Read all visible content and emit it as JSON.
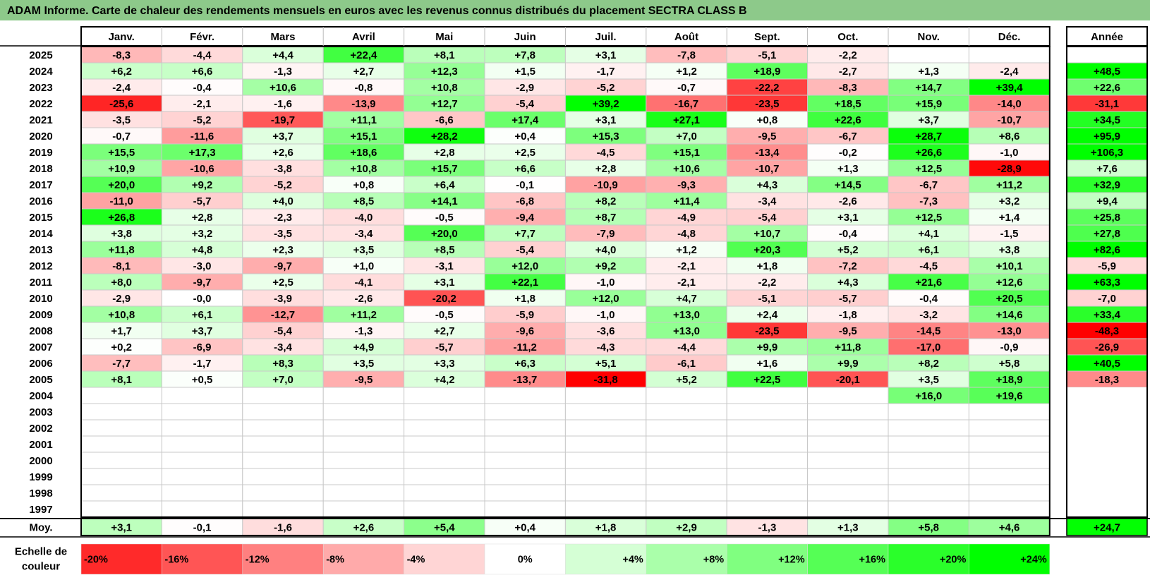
{
  "title": "ADAM Informe. Carte de chaleur des rendements mensuels en euros avec les revenus connus distribués du placement SECTRA CLASS B",
  "chart_data": {
    "type": "heatmap",
    "title": "ADAM Informe. Carte de chaleur des rendements mensuels en euros avec les revenus connus distribués du placement SECTRA CLASS B",
    "columns": [
      "Janv.",
      "Févr.",
      "Mars",
      "Avril",
      "Mai",
      "Juin",
      "Juil.",
      "Août",
      "Sept.",
      "Oct.",
      "Nov.",
      "Déc."
    ],
    "annual_header": "Année",
    "rows": [
      {
        "year": "2025",
        "values": [
          "-8,3",
          "-4,4",
          "+4,4",
          "+22,4",
          "+8,1",
          "+7,8",
          "+3,1",
          "-7,8",
          "-5,1",
          "-2,2",
          "",
          ""
        ],
        "annual": ""
      },
      {
        "year": "2024",
        "values": [
          "+6,2",
          "+6,6",
          "-1,3",
          "+2,7",
          "+12,3",
          "+1,5",
          "-1,7",
          "+1,2",
          "+18,9",
          "-2,7",
          "+1,3",
          "-2,4"
        ],
        "annual": "+48,5"
      },
      {
        "year": "2023",
        "values": [
          "-2,4",
          "-0,4",
          "+10,6",
          "-0,8",
          "+10,8",
          "-2,9",
          "-5,2",
          "-0,7",
          "-22,2",
          "-8,3",
          "+14,7",
          "+39,4"
        ],
        "annual": "+22,6"
      },
      {
        "year": "2022",
        "values": [
          "-25,6",
          "-2,1",
          "-1,6",
          "-13,9",
          "+12,7",
          "-5,4",
          "+39,2",
          "-16,7",
          "-23,5",
          "+18,5",
          "+15,9",
          "-14,0"
        ],
        "annual": "-31,1"
      },
      {
        "year": "2021",
        "values": [
          "-3,5",
          "-5,2",
          "-19,7",
          "+11,1",
          "-6,6",
          "+17,4",
          "+3,1",
          "+27,1",
          "+0,8",
          "+22,6",
          "+3,7",
          "-10,7"
        ],
        "annual": "+34,5"
      },
      {
        "year": "2020",
        "values": [
          "-0,7",
          "-11,6",
          "+3,7",
          "+15,1",
          "+28,2",
          "+0,4",
          "+15,3",
          "+7,0",
          "-9,5",
          "-6,7",
          "+28,7",
          "+8,6"
        ],
        "annual": "+95,9"
      },
      {
        "year": "2019",
        "values": [
          "+15,5",
          "+17,3",
          "+2,6",
          "+18,6",
          "+2,8",
          "+2,5",
          "-4,5",
          "+15,1",
          "-13,4",
          "-0,2",
          "+26,6",
          "-1,0"
        ],
        "annual": "+106,3"
      },
      {
        "year": "2018",
        "values": [
          "+10,9",
          "-10,6",
          "-3,8",
          "+10,8",
          "+15,7",
          "+6,6",
          "+2,8",
          "+10,6",
          "-10,7",
          "+1,3",
          "+12,5",
          "-28,9"
        ],
        "annual": "+7,6"
      },
      {
        "year": "2017",
        "values": [
          "+20,0",
          "+9,2",
          "-5,2",
          "+0,8",
          "+6,4",
          "-0,1",
          "-10,9",
          "-9,3",
          "+4,3",
          "+14,5",
          "-6,7",
          "+11,2"
        ],
        "annual": "+32,9"
      },
      {
        "year": "2016",
        "values": [
          "-11,0",
          "-5,7",
          "+4,0",
          "+8,5",
          "+14,1",
          "-6,8",
          "+8,2",
          "+11,4",
          "-3,4",
          "-2,6",
          "-7,3",
          "+3,2"
        ],
        "annual": "+9,4"
      },
      {
        "year": "2015",
        "values": [
          "+26,8",
          "+2,8",
          "-2,3",
          "-4,0",
          "-0,5",
          "-9,4",
          "+8,7",
          "-4,9",
          "-5,4",
          "+3,1",
          "+12,5",
          "+1,4"
        ],
        "annual": "+25,8"
      },
      {
        "year": "2014",
        "values": [
          "+3,8",
          "+3,2",
          "-3,5",
          "-3,4",
          "+20,0",
          "+7,7",
          "-7,9",
          "-4,8",
          "+10,7",
          "-0,4",
          "+4,1",
          "-1,5"
        ],
        "annual": "+27,8"
      },
      {
        "year": "2013",
        "values": [
          "+11,8",
          "+4,8",
          "+2,3",
          "+3,5",
          "+8,5",
          "-5,4",
          "+4,0",
          "+1,2",
          "+20,3",
          "+5,2",
          "+6,1",
          "+3,8"
        ],
        "annual": "+82,6"
      },
      {
        "year": "2012",
        "values": [
          "-8,1",
          "-3,0",
          "-9,7",
          "+1,0",
          "-3,1",
          "+12,0",
          "+9,2",
          "-2,1",
          "+1,8",
          "-7,2",
          "-4,5",
          "+10,1"
        ],
        "annual": "-5,9"
      },
      {
        "year": "2011",
        "values": [
          "+8,0",
          "-9,7",
          "+2,5",
          "-4,1",
          "+3,1",
          "+22,1",
          "-1,0",
          "-2,1",
          "-2,2",
          "+4,3",
          "+21,6",
          "+12,6"
        ],
        "annual": "+63,3"
      },
      {
        "year": "2010",
        "values": [
          "-2,9",
          "-0,0",
          "-3,9",
          "-2,6",
          "-20,2",
          "+1,8",
          "+12,0",
          "+4,7",
          "-5,1",
          "-5,7",
          "-0,4",
          "+20,5"
        ],
        "annual": "-7,0"
      },
      {
        "year": "2009",
        "values": [
          "+10,8",
          "+6,1",
          "-12,7",
          "+11,2",
          "-0,5",
          "-5,9",
          "-1,0",
          "+13,0",
          "+2,4",
          "-1,8",
          "-3,2",
          "+14,6"
        ],
        "annual": "+33,4"
      },
      {
        "year": "2008",
        "values": [
          "+1,7",
          "+3,7",
          "-5,4",
          "-1,3",
          "+2,7",
          "-9,6",
          "-3,6",
          "+13,0",
          "-23,5",
          "-9,5",
          "-14,5",
          "-13,0"
        ],
        "annual": "-48,3"
      },
      {
        "year": "2007",
        "values": [
          "+0,2",
          "-6,9",
          "-3,4",
          "+4,9",
          "-5,7",
          "-11,2",
          "-4,3",
          "-4,4",
          "+9,9",
          "+11,8",
          "-17,0",
          "-0,9"
        ],
        "annual": "-26,9"
      },
      {
        "year": "2006",
        "values": [
          "-7,7",
          "-1,7",
          "+8,3",
          "+3,5",
          "+3,3",
          "+6,3",
          "+5,1",
          "-6,1",
          "+1,6",
          "+9,9",
          "+8,2",
          "+5,8"
        ],
        "annual": "+40,5"
      },
      {
        "year": "2005",
        "values": [
          "+8,1",
          "+0,5",
          "+7,0",
          "-9,5",
          "+4,2",
          "-13,7",
          "-31,8",
          "+5,2",
          "+22,5",
          "-20,1",
          "+3,5",
          "+18,9"
        ],
        "annual": "-18,3"
      },
      {
        "year": "2004",
        "values": [
          "",
          "",
          "",
          "",
          "",
          "",
          "",
          "",
          "",
          "",
          "+16,0",
          "+19,6"
        ],
        "annual": ""
      },
      {
        "year": "2003",
        "values": [
          "",
          "",
          "",
          "",
          "",
          "",
          "",
          "",
          "",
          "",
          "",
          ""
        ],
        "annual": ""
      },
      {
        "year": "2002",
        "values": [
          "",
          "",
          "",
          "",
          "",
          "",
          "",
          "",
          "",
          "",
          "",
          ""
        ],
        "annual": ""
      },
      {
        "year": "2001",
        "values": [
          "",
          "",
          "",
          "",
          "",
          "",
          "",
          "",
          "",
          "",
          "",
          ""
        ],
        "annual": ""
      },
      {
        "year": "2000",
        "values": [
          "",
          "",
          "",
          "",
          "",
          "",
          "",
          "",
          "",
          "",
          "",
          ""
        ],
        "annual": ""
      },
      {
        "year": "1999",
        "values": [
          "",
          "",
          "",
          "",
          "",
          "",
          "",
          "",
          "",
          "",
          "",
          ""
        ],
        "annual": ""
      },
      {
        "year": "1998",
        "values": [
          "",
          "",
          "",
          "",
          "",
          "",
          "",
          "",
          "",
          "",
          "",
          ""
        ],
        "annual": ""
      },
      {
        "year": "1997",
        "values": [
          "",
          "",
          "",
          "",
          "",
          "",
          "",
          "",
          "",
          "",
          "",
          ""
        ],
        "annual": ""
      }
    ],
    "average_row": {
      "label": "Moy.",
      "values": [
        "+3,1",
        "-0,1",
        "-1,6",
        "+2,6",
        "+5,4",
        "+0,4",
        "+1,8",
        "+2,9",
        "-1,3",
        "+1,3",
        "+5,8",
        "+4,6"
      ],
      "annual": "+24,7"
    },
    "color_scale": {
      "label_line1": "Echelle de",
      "label_line2": "couleur",
      "stops": [
        "-20%",
        "-16%",
        "-12%",
        "-8%",
        "-4%",
        "0%",
        "+4%",
        "+8%",
        "+12%",
        "+16%",
        "+20%",
        "+24%"
      ]
    },
    "colors": {
      "title_bar": "#8dc98a",
      "negative_max": "#ff0000",
      "neutral": "#ffffff",
      "positive_max": "#00ff00"
    }
  }
}
